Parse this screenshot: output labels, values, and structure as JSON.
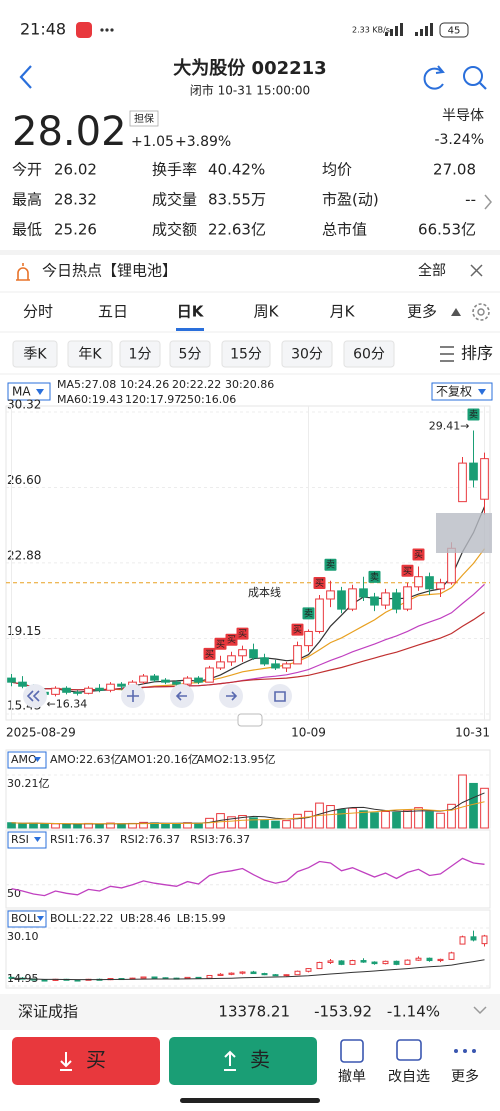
{
  "status": {
    "time": "21:48",
    "net": "2.33 KB/s",
    "battery": "45"
  },
  "header": {
    "title": "大为股份 002213",
    "subtitle": "闭市 10-31 15:00:00"
  },
  "quote": {
    "price": "28.02",
    "tag": "担保",
    "change": "+1.05",
    "pct": "+3.89%",
    "sector": "半导体",
    "sector_pct": "-3.24%"
  },
  "stats": [
    {
      "label": "今开",
      "value": "26.02",
      "color": "#1a9e75"
    },
    {
      "label": "换手率",
      "value": "40.42%"
    },
    {
      "label": "均价",
      "value": "27.08",
      "color": "#e8383d"
    },
    {
      "label": "最高",
      "value": "28.32",
      "color": "#e8383d"
    },
    {
      "label": "成交量",
      "value": "83.55万"
    },
    {
      "label": "市盈(动)",
      "value": "--"
    },
    {
      "label": "最低",
      "value": "25.26",
      "color": "#1a9e75"
    },
    {
      "label": "成交额",
      "value": "22.63亿"
    },
    {
      "label": "总市值",
      "value": "66.53亿"
    }
  ],
  "hot": {
    "text": "今日热点【锂电池】",
    "more": "全部"
  },
  "tabs": [
    "分时",
    "五日",
    "日K",
    "周K",
    "月K",
    "更多"
  ],
  "active_tab": 2,
  "periods": [
    "季K",
    "年K",
    "1分",
    "5分",
    "15分",
    "30分",
    "60分"
  ],
  "sort": "排序",
  "chart_data": {
    "type": "candlestick",
    "ma_name": "MA",
    "ma_legend": [
      {
        "text": "MA5:27.08",
        "color": "#333333"
      },
      {
        "text": "10:24.26",
        "color": "#e8a020"
      },
      {
        "text": "20:22.22",
        "color": "#c040c0"
      },
      {
        "text": "30:20.86",
        "color": "#c03030"
      },
      {
        "text": "MA60:19.43",
        "color": "#e0802a"
      },
      {
        "text": "120:17.97",
        "color": "#5bc0de"
      },
      {
        "text": "250:16.06",
        "color": "#2a9d3a"
      }
    ],
    "adjust": "不复权",
    "up_color": "#e8383d",
    "down_color": "#1a9e75",
    "ylim": [
      15.43,
      30.32
    ],
    "yticks": [
      30.32,
      {
        "value": 26.6,
        "label": "26.60"
      },
      22.88,
      19.15,
      15.43
    ],
    "categories": [
      "2025-08-29",
      null,
      null,
      null,
      null,
      null,
      null,
      null,
      null,
      null,
      null,
      null,
      null,
      null,
      null,
      null,
      null,
      null,
      null,
      null,
      null,
      null,
      null,
      null,
      null,
      null,
      null,
      "10-09",
      null,
      null,
      null,
      null,
      null,
      null,
      null,
      null,
      null,
      null,
      null,
      null,
      null,
      null,
      null,
      "10-31"
    ],
    "candles": [
      [
        17.2,
        17.4,
        16.8,
        17.0
      ],
      [
        17.0,
        17.3,
        16.7,
        16.8
      ],
      [
        16.8,
        16.9,
        16.4,
        16.5
      ],
      [
        16.5,
        16.7,
        16.3,
        16.4
      ],
      [
        16.4,
        16.8,
        16.3,
        16.7
      ],
      [
        16.7,
        16.8,
        16.4,
        16.5
      ],
      [
        16.5,
        16.6,
        16.34,
        16.45
      ],
      [
        16.45,
        16.8,
        16.4,
        16.7
      ],
      [
        16.7,
        16.9,
        16.5,
        16.6
      ],
      [
        16.6,
        17.0,
        16.5,
        16.9
      ],
      [
        16.9,
        17.0,
        16.6,
        16.8
      ],
      [
        16.8,
        17.1,
        16.7,
        17.0
      ],
      [
        17.0,
        17.4,
        16.9,
        17.3
      ],
      [
        17.3,
        17.4,
        17.0,
        17.1
      ],
      [
        17.1,
        17.2,
        16.9,
        17.0
      ],
      [
        17.0,
        17.1,
        16.8,
        16.9
      ],
      [
        16.9,
        17.3,
        16.8,
        17.2
      ],
      [
        17.2,
        17.3,
        16.9,
        17.0
      ],
      [
        17.0,
        17.8,
        17.0,
        17.7
      ],
      [
        17.7,
        18.3,
        17.6,
        18.0
      ],
      [
        18.0,
        18.5,
        17.8,
        18.3
      ],
      [
        18.3,
        18.8,
        18.0,
        18.6
      ],
      [
        18.6,
        18.9,
        18.1,
        18.2
      ],
      [
        18.2,
        18.4,
        17.8,
        17.9
      ],
      [
        17.9,
        18.1,
        17.6,
        17.7
      ],
      [
        17.7,
        18.0,
        17.5,
        17.9
      ],
      [
        17.9,
        19.0,
        17.9,
        18.8
      ],
      [
        18.8,
        19.6,
        18.5,
        19.5
      ],
      [
        19.5,
        21.3,
        19.4,
        21.1
      ],
      [
        21.1,
        22.0,
        20.7,
        21.5
      ],
      [
        21.5,
        21.7,
        20.4,
        20.6
      ],
      [
        20.6,
        21.8,
        20.5,
        21.6
      ],
      [
        21.6,
        22.2,
        21.0,
        21.2
      ],
      [
        21.2,
        21.4,
        20.5,
        20.8
      ],
      [
        20.8,
        21.6,
        20.6,
        21.4
      ],
      [
        21.4,
        21.6,
        20.4,
        20.6
      ],
      [
        20.6,
        21.9,
        20.5,
        21.7
      ],
      [
        21.7,
        22.7,
        21.5,
        22.2
      ],
      [
        22.2,
        22.4,
        21.3,
        21.6
      ],
      [
        21.6,
        22.1,
        21.2,
        21.9
      ],
      [
        21.9,
        23.9,
        21.8,
        23.6
      ],
      [
        25.9,
        28.1,
        25.9,
        27.8
      ],
      [
        27.8,
        29.41,
        26.6,
        26.97
      ],
      [
        26.02,
        28.32,
        25.26,
        28.02
      ]
    ],
    "high_label": "29.41→",
    "low_label": "←16.34",
    "cost_line": {
      "label": "成本线",
      "value": 21.9,
      "color": "#e8a020"
    },
    "markers": [
      {
        "index": 18,
        "label": "买"
      },
      {
        "index": 19,
        "label": "买"
      },
      {
        "index": 20,
        "label": "买"
      },
      {
        "index": 21,
        "label": "买"
      },
      {
        "index": 26,
        "label": "买"
      },
      {
        "index": 27,
        "label": "卖"
      },
      {
        "index": 28,
        "label": "买"
      },
      {
        "index": 29,
        "label": "卖"
      },
      {
        "index": 33,
        "label": "卖"
      },
      {
        "index": 36,
        "label": "买"
      },
      {
        "index": 37,
        "label": "买"
      },
      {
        "index": 42,
        "label": "卖"
      }
    ]
  },
  "amo": {
    "name": "AMO",
    "legend": [
      {
        "text": "AMO:22.63亿",
        "color": "#333333"
      },
      {
        "text": "AMO1:20.16亿",
        "color": "#e8a020"
      },
      {
        "text": "AMO2:13.95亿",
        "color": "#c040c0"
      }
    ],
    "ylim": [
      0,
      30.21
    ],
    "yticks": [
      {
        "value": 30.21,
        "label": "30.21亿"
      }
    ],
    "values": [
      3,
      2.5,
      2.8,
      2.2,
      2.4,
      2.1,
      2.3,
      2.6,
      2.2,
      2.8,
      2.4,
      2.6,
      3.2,
      2.9,
      2.5,
      2.3,
      3.0,
      2.7,
      5.5,
      8.2,
      6.4,
      7.1,
      5.8,
      4.6,
      3.9,
      4.2,
      7.8,
      9.5,
      14.2,
      12.8,
      10.6,
      11.3,
      9.8,
      8.7,
      9.4,
      8.9,
      10.2,
      11.6,
      9.1,
      8.4,
      13.5,
      30.21,
      25.4,
      22.63
    ]
  },
  "rsi": {
    "name": "RSI",
    "legend": [
      {
        "text": "RSI1:76.37",
        "color": "#333333"
      },
      {
        "text": "RSI2:76.37",
        "color": "#e8a020"
      },
      {
        "text": "RSI3:76.37",
        "color": "#c040c0"
      }
    ],
    "color": "#c040c0",
    "ylim": [
      20,
      100
    ],
    "yticks": [
      50
    ],
    "values": [
      45,
      42,
      38,
      36,
      42,
      39,
      37,
      44,
      42,
      48,
      46,
      50,
      55,
      52,
      50,
      48,
      54,
      51,
      62,
      66,
      68,
      71,
      63,
      56,
      52,
      55,
      67,
      72,
      80,
      78,
      68,
      72,
      66,
      60,
      65,
      58,
      66,
      70,
      62,
      64,
      74,
      84,
      78,
      76.37
    ]
  },
  "boll": {
    "name": "BOLL",
    "legend": [
      {
        "text": "BOLL:22.22",
        "color": "#333333"
      },
      {
        "text": "UB:28.46",
        "color": "#e8a020"
      },
      {
        "text": "LB:15.99",
        "color": "#c040c0"
      }
    ],
    "ylim": [
      14.95,
      30.1
    ],
    "yticks": [
      {
        "value": 30.1,
        "label": "30.10"
      },
      14.95
    ]
  },
  "index_bar": {
    "name": "深证成指",
    "value": "13378.21",
    "change": "-153.92",
    "pct": "-1.14%"
  },
  "actions": {
    "buy": "买",
    "sell": "卖",
    "tools": [
      "撤单",
      "改自选",
      "更多"
    ]
  }
}
